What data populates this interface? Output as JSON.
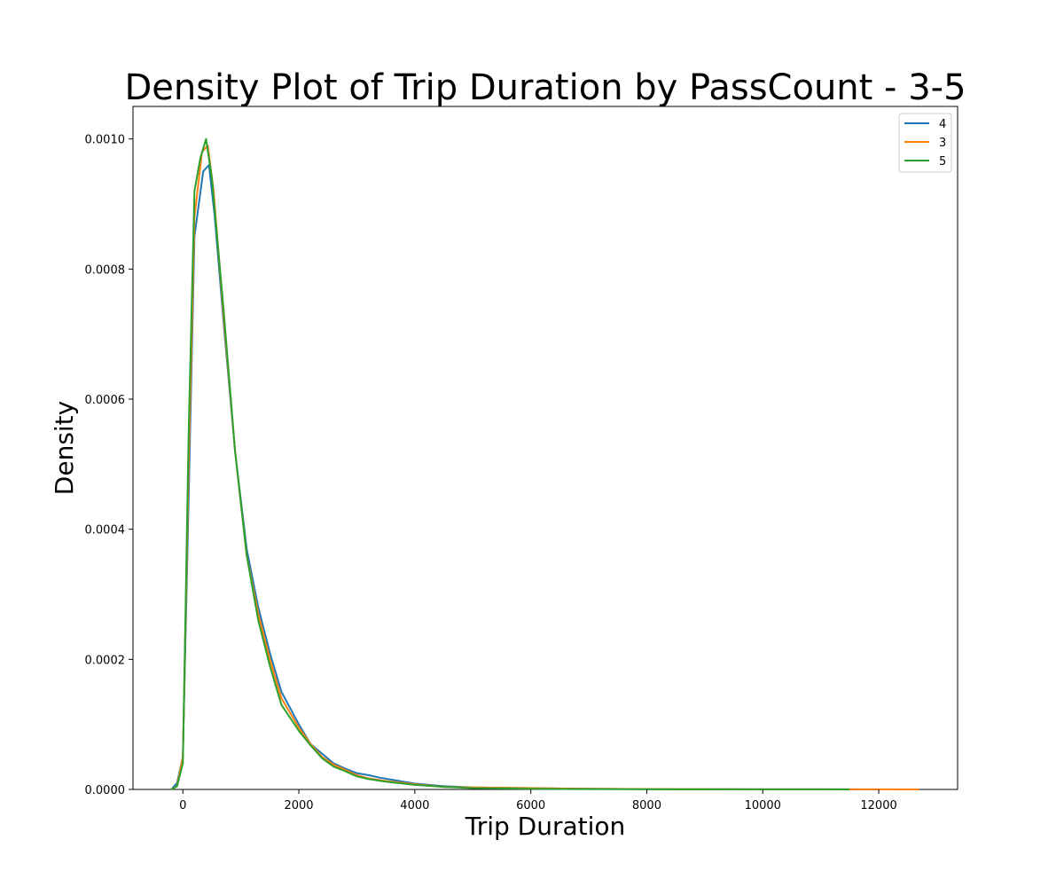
{
  "chart_data": {
    "type": "line",
    "title": "Density Plot of Trip Duration by PassCount - 3-5",
    "xlabel": "Trip Duration",
    "ylabel": "Density",
    "xlim": [
      -860,
      13360
    ],
    "ylim": [
      0,
      0.00105
    ],
    "xticks": [
      0,
      2000,
      4000,
      6000,
      8000,
      10000,
      12000
    ],
    "xtick_labels": [
      "0",
      "2000",
      "4000",
      "6000",
      "8000",
      "10000",
      "12000"
    ],
    "yticks": [
      0,
      0.0002,
      0.0004,
      0.0006,
      0.0008,
      0.001
    ],
    "ytick_labels": [
      "0.0000",
      "0.0002",
      "0.0004",
      "0.0006",
      "0.0008",
      "0.0010"
    ],
    "grid": false,
    "legend_position": "top-right",
    "series": [
      {
        "name": "4",
        "color": "#1f77b4",
        "points": [
          [
            -200,
            0
          ],
          [
            -100,
            1e-05
          ],
          [
            0,
            5e-05
          ],
          [
            100,
            0.00045
          ],
          [
            200,
            0.00085
          ],
          [
            350,
            0.00095
          ],
          [
            450,
            0.00096
          ],
          [
            550,
            0.00088
          ],
          [
            700,
            0.00072
          ],
          [
            900,
            0.00052
          ],
          [
            1100,
            0.00037
          ],
          [
            1300,
            0.00028
          ],
          [
            1500,
            0.00021
          ],
          [
            1700,
            0.00015
          ],
          [
            2000,
            0.0001
          ],
          [
            2200,
            7e-05
          ],
          [
            2400,
            5.5e-05
          ],
          [
            2600,
            4e-05
          ],
          [
            2800,
            3.2e-05
          ],
          [
            3000,
            2.5e-05
          ],
          [
            3200,
            2.2e-05
          ],
          [
            3400,
            1.8e-05
          ],
          [
            3600,
            1.5e-05
          ],
          [
            3800,
            1.2e-05
          ],
          [
            4000,
            9e-06
          ],
          [
            4500,
            5e-06
          ],
          [
            5000,
            3e-06
          ],
          [
            6000,
            2e-06
          ],
          [
            7000,
            1e-06
          ],
          [
            8000,
            5e-07
          ],
          [
            9000,
            3e-07
          ],
          [
            10000,
            2e-07
          ],
          [
            11000,
            1e-07
          ],
          [
            12000,
            0
          ]
        ]
      },
      {
        "name": "3",
        "color": "#ff7f0e",
        "points": [
          [
            -200,
            0
          ],
          [
            -100,
            5e-06
          ],
          [
            0,
            5e-05
          ],
          [
            100,
            0.0005
          ],
          [
            200,
            0.00088
          ],
          [
            330,
            0.00098
          ],
          [
            430,
            0.00099
          ],
          [
            530,
            0.00092
          ],
          [
            700,
            0.00073
          ],
          [
            900,
            0.00052
          ],
          [
            1100,
            0.00036
          ],
          [
            1300,
            0.00027
          ],
          [
            1500,
            0.0002
          ],
          [
            1700,
            0.00014
          ],
          [
            2000,
            9.5e-05
          ],
          [
            2200,
            7e-05
          ],
          [
            2400,
            5e-05
          ],
          [
            2600,
            3.8e-05
          ],
          [
            2800,
            3e-05
          ],
          [
            3000,
            2.2e-05
          ],
          [
            3200,
            1.7e-05
          ],
          [
            3500,
            1.3e-05
          ],
          [
            4000,
            8e-06
          ],
          [
            4500,
            4e-06
          ],
          [
            5000,
            3e-06
          ],
          [
            6000,
            2e-06
          ],
          [
            7000,
            1e-06
          ],
          [
            8000,
            5e-07
          ],
          [
            9000,
            3e-07
          ],
          [
            10000,
            2e-07
          ],
          [
            11000,
            1e-07
          ],
          [
            12000,
            1e-07
          ],
          [
            12700,
            0
          ]
        ]
      },
      {
        "name": "5",
        "color": "#2ca02c",
        "points": [
          [
            -200,
            0
          ],
          [
            -100,
            5e-06
          ],
          [
            0,
            4e-05
          ],
          [
            100,
            0.00055
          ],
          [
            200,
            0.00092
          ],
          [
            300,
            0.00097
          ],
          [
            400,
            0.001
          ],
          [
            500,
            0.00094
          ],
          [
            700,
            0.00074
          ],
          [
            900,
            0.00052
          ],
          [
            1100,
            0.00036
          ],
          [
            1300,
            0.00026
          ],
          [
            1500,
            0.00019
          ],
          [
            1700,
            0.00013
          ],
          [
            2000,
            9e-05
          ],
          [
            2200,
            6.8e-05
          ],
          [
            2400,
            4.8e-05
          ],
          [
            2600,
            3.5e-05
          ],
          [
            2800,
            2.8e-05
          ],
          [
            3000,
            2e-05
          ],
          [
            3200,
            1.6e-05
          ],
          [
            3500,
            1.2e-05
          ],
          [
            4000,
            7e-06
          ],
          [
            4500,
            4e-06
          ],
          [
            5000,
            2e-06
          ],
          [
            6000,
            1e-06
          ],
          [
            7000,
            5e-07
          ],
          [
            8000,
            3e-07
          ],
          [
            9000,
            2e-07
          ],
          [
            10000,
            1e-07
          ],
          [
            11000,
            1e-07
          ],
          [
            11500,
            0
          ]
        ]
      }
    ]
  }
}
